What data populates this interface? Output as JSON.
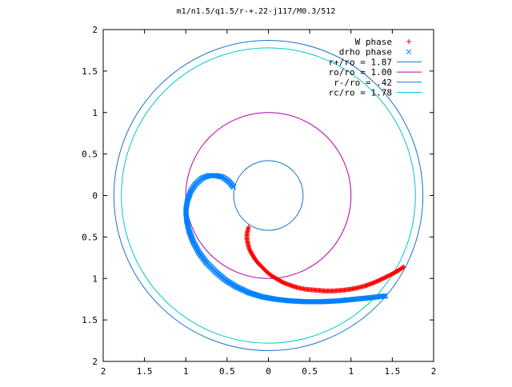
{
  "chart_data": {
    "type": "scatter",
    "title": "m1/n1.5/q1.5/r-+.22-j117/M0.3/512",
    "xlim": [
      -2,
      2
    ],
    "ylim": [
      -2,
      2
    ],
    "x_ticks": [
      -2,
      -1.5,
      -1,
      -0.5,
      0,
      0.5,
      1,
      1.5,
      2
    ],
    "y_ticks": [
      -2,
      -1.5,
      -1,
      -0.5,
      0,
      0.5,
      1,
      1.5,
      2
    ],
    "x_tick_labels": [
      "2",
      "1.5",
      "1",
      "0.5",
      "0",
      "0.5",
      "1",
      "1.5",
      "2"
    ],
    "y_tick_labels": [
      "2",
      "1.5",
      "1",
      "0.5",
      "0",
      "0.5",
      "1",
      "1.5",
      "2"
    ],
    "grid": false,
    "legend_position": "top-right",
    "series": [
      {
        "name": "W phase",
        "kind": "points",
        "marker": "plus",
        "color": "#ff0000",
        "points": [
          [
            -0.24,
            -0.38
          ],
          [
            -0.25,
            -0.42
          ],
          [
            -0.26,
            -0.47
          ],
          [
            -0.26,
            -0.52
          ],
          [
            -0.25,
            -0.57
          ],
          [
            -0.24,
            -0.62
          ],
          [
            -0.22,
            -0.67
          ],
          [
            -0.19,
            -0.72
          ],
          [
            -0.16,
            -0.77
          ],
          [
            -0.12,
            -0.82
          ],
          [
            -0.07,
            -0.87
          ],
          [
            -0.02,
            -0.92
          ],
          [
            0.04,
            -0.97
          ],
          [
            0.11,
            -1.01
          ],
          [
            0.18,
            -1.05
          ],
          [
            0.26,
            -1.08
          ],
          [
            0.35,
            -1.11
          ],
          [
            0.45,
            -1.13
          ],
          [
            0.56,
            -1.14
          ],
          [
            0.68,
            -1.15
          ],
          [
            0.8,
            -1.15
          ],
          [
            0.92,
            -1.14
          ],
          [
            1.05,
            -1.12
          ],
          [
            1.17,
            -1.09
          ],
          [
            1.28,
            -1.05
          ],
          [
            1.39,
            -1.0
          ],
          [
            1.49,
            -0.95
          ],
          [
            1.58,
            -0.9
          ],
          [
            1.64,
            -0.86
          ]
        ]
      },
      {
        "name": "drho phase",
        "kind": "points",
        "marker": "cross",
        "color": "#0080ff",
        "points": [
          [
            -0.42,
            0.1
          ],
          [
            -0.48,
            0.17
          ],
          [
            -0.55,
            0.22
          ],
          [
            -0.63,
            0.24
          ],
          [
            -0.72,
            0.24
          ],
          [
            -0.8,
            0.21
          ],
          [
            -0.88,
            0.14
          ],
          [
            -0.94,
            0.05
          ],
          [
            -0.98,
            -0.06
          ],
          [
            -1.0,
            -0.18
          ],
          [
            -0.99,
            -0.3
          ],
          [
            -0.96,
            -0.43
          ],
          [
            -0.91,
            -0.56
          ],
          [
            -0.84,
            -0.69
          ],
          [
            -0.75,
            -0.81
          ],
          [
            -0.64,
            -0.92
          ],
          [
            -0.52,
            -1.02
          ],
          [
            -0.39,
            -1.1
          ],
          [
            -0.24,
            -1.17
          ],
          [
            -0.08,
            -1.22
          ],
          [
            0.08,
            -1.25
          ],
          [
            0.26,
            -1.27
          ],
          [
            0.45,
            -1.28
          ],
          [
            0.65,
            -1.28
          ],
          [
            0.85,
            -1.27
          ],
          [
            1.05,
            -1.25
          ],
          [
            1.25,
            -1.23
          ],
          [
            1.42,
            -1.21
          ]
        ]
      },
      {
        "name": "r+/ro = 1.87",
        "kind": "circle",
        "radius": 1.87,
        "color": "#1874cd"
      },
      {
        "name": "ro/ro = 1.00",
        "kind": "circle",
        "radius": 1.0,
        "color": "#b000b0"
      },
      {
        "name": "r-/ro = .42",
        "kind": "circle",
        "radius": 0.42,
        "color": "#1874cd"
      },
      {
        "name": "rc/ro = 1.78",
        "kind": "circle",
        "radius": 1.78,
        "color": "#00c8c8"
      }
    ]
  }
}
